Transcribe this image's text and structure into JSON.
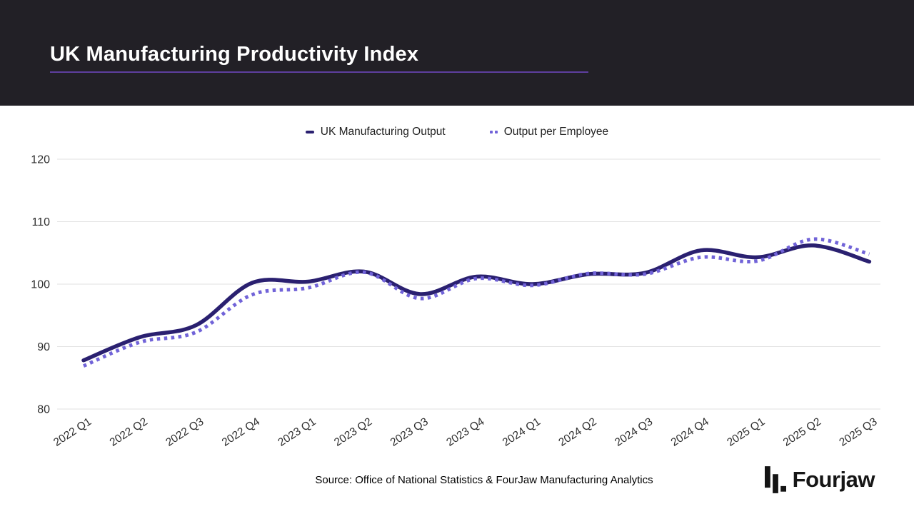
{
  "header": {
    "title": "UK Manufacturing Productivity Index"
  },
  "legend": {
    "items": [
      {
        "label": "UK Manufacturing Output"
      },
      {
        "label": "Output per Employee"
      }
    ]
  },
  "footer": {
    "source": "Source: Office of National Statistics & FourJaw Manufacturing Analytics",
    "brand": "Fourjaw"
  },
  "colors": {
    "header_bg": "#222026",
    "title_underline": "#5e3f9f",
    "output_line": "#2a2070",
    "employee_line": "#7163d8",
    "gridline": "#e2e2e2",
    "axis_text": "#2e2e2e"
  },
  "chart_data": {
    "type": "line",
    "title": "UK Manufacturing Productivity Index",
    "categories": [
      "2022 Q1",
      "2022 Q2",
      "2022 Q3",
      "2022 Q4",
      "2023 Q1",
      "2023 Q2",
      "2023 Q3",
      "2023 Q4",
      "2024 Q1",
      "2024 Q2",
      "2024 Q3",
      "2024 Q4",
      "2025 Q1",
      "2025 Q2",
      "2025 Q3"
    ],
    "series": [
      {
        "name": "UK Manufacturing Output",
        "style": "solid",
        "color": "#2a2070",
        "values": [
          87.8,
          91.5,
          93.4,
          100.2,
          100.4,
          102.0,
          98.4,
          101.2,
          100.0,
          101.6,
          101.8,
          105.4,
          104.3,
          106.2,
          103.6
        ]
      },
      {
        "name": "Output per Employee",
        "style": "dotted",
        "color": "#7163d8",
        "values": [
          86.9,
          90.7,
          92.3,
          98.3,
          99.4,
          101.9,
          97.7,
          100.9,
          99.8,
          101.7,
          101.6,
          104.3,
          103.7,
          107.2,
          104.8
        ]
      }
    ],
    "xlabel": "",
    "ylabel": "",
    "ylim": [
      80,
      120
    ],
    "yticks": [
      80,
      90,
      100,
      110,
      120
    ],
    "grid": true,
    "legend_position": "top"
  }
}
